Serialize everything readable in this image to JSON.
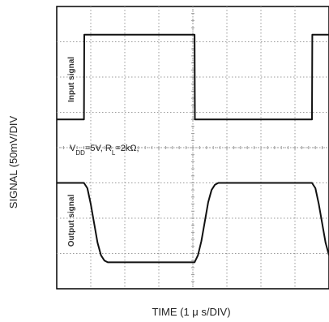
{
  "chart_data": {
    "type": "line",
    "xlabel": "TIME (1 μ s/DIV)",
    "ylabel": "SIGNAL (50mV/DIV",
    "divisions": {
      "x": 8,
      "y": 8
    },
    "xlim": [
      0,
      8
    ],
    "ylim": [
      0,
      8
    ],
    "grid": true,
    "annotation": {
      "parts": [
        {
          "text": "V",
          "sub": false
        },
        {
          "text": "DD",
          "sub": true
        },
        {
          "text": "=5V, R",
          "sub": false
        },
        {
          "text": "L",
          "sub": true
        },
        {
          "text": "=2kΩ,",
          "sub": false
        }
      ]
    },
    "series": [
      {
        "name": "Input signal",
        "x": [
          0,
          0.8,
          0.81,
          4.05,
          4.06,
          7.5,
          7.51,
          8
        ],
        "y": [
          4.8,
          4.8,
          7.2,
          7.2,
          4.8,
          4.8,
          7.2,
          7.2
        ]
      },
      {
        "name": "Output signal",
        "x": [
          0,
          0.8,
          0.9,
          1.0,
          1.1,
          1.2,
          1.3,
          1.4,
          1.5,
          1.6,
          4.05,
          4.15,
          4.25,
          4.35,
          4.45,
          4.55,
          4.65,
          4.75,
          4.85,
          7.5,
          7.6,
          7.7,
          7.8,
          7.9,
          8.0
        ],
        "y": [
          3.0,
          3.0,
          2.85,
          2.4,
          1.85,
          1.3,
          0.95,
          0.8,
          0.75,
          0.75,
          0.75,
          0.95,
          1.35,
          1.9,
          2.45,
          2.8,
          2.95,
          3.0,
          3.0,
          3.0,
          2.85,
          2.4,
          1.85,
          1.3,
          0.95
        ]
      }
    ]
  }
}
